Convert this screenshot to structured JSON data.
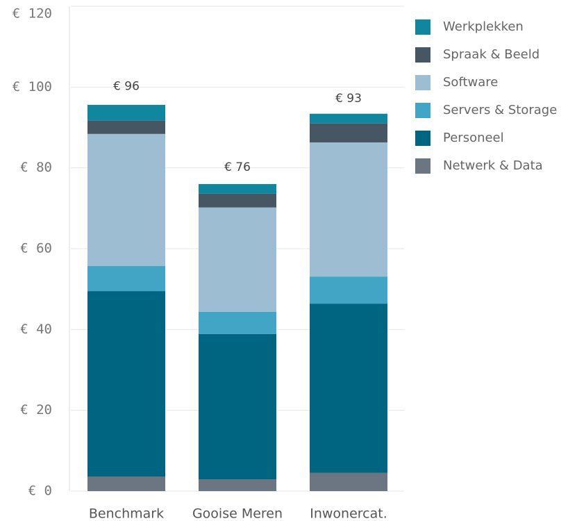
{
  "chart_data": {
    "type": "stacked_bar",
    "categories": [
      "Benchmark",
      "Gooise Meren",
      "Inwonercat."
    ],
    "series": [
      {
        "name": "Netwerk & Data",
        "color": "#6b7682",
        "values": [
          3.6,
          2.9,
          4.5
        ]
      },
      {
        "name": "Personeel",
        "color": "#006580",
        "values": [
          45.9,
          36.0,
          41.9
        ]
      },
      {
        "name": "Servers & Storage",
        "color": "#43a5c5",
        "values": [
          6.2,
          5.5,
          6.7
        ]
      },
      {
        "name": "Software",
        "color": "#9dbdd3",
        "values": [
          32.7,
          25.8,
          33.2
        ]
      },
      {
        "name": "Spraak & Beeld",
        "color": "#465663",
        "values": [
          3.3,
          3.4,
          4.7
        ]
      },
      {
        "name": "Werkplekken",
        "color": "#10879f",
        "values": [
          3.9,
          2.4,
          2.4
        ]
      }
    ],
    "totals": [
      96,
      76,
      93
    ],
    "total_labels": [
      "€ 96",
      "€ 76",
      "€ 93"
    ],
    "ylim": [
      0,
      120
    ],
    "yticks": [
      {
        "value": 0,
        "label": "€ 0"
      },
      {
        "value": 20,
        "label": "€ 20"
      },
      {
        "value": 40,
        "label": "€ 40"
      },
      {
        "value": 60,
        "label": "€ 60"
      },
      {
        "value": 80,
        "label": "€ 80"
      },
      {
        "value": 100,
        "label": "€ 100"
      },
      {
        "value": 120,
        "label": "€ 120"
      }
    ],
    "grid": true,
    "legend": "right"
  }
}
